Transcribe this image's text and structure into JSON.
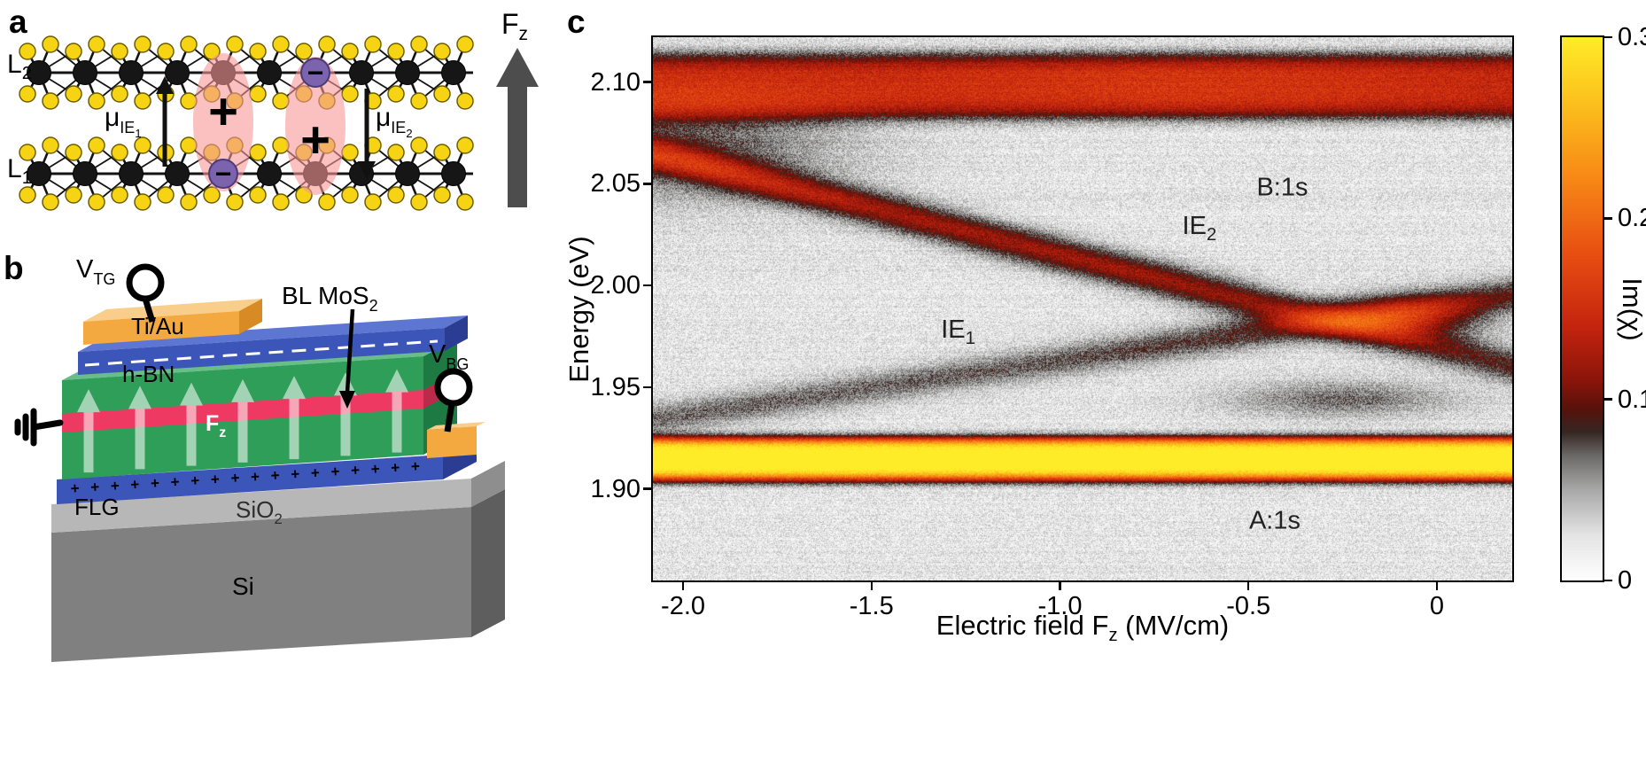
{
  "figure": {
    "panel_a": {
      "label": "a",
      "layer2": {
        "main": "L",
        "sub": "2"
      },
      "layer1": {
        "main": "L",
        "sub": "1"
      },
      "mu_ie1": {
        "main": "μ",
        "sub": "IE",
        "subsub": "1"
      },
      "mu_ie2": {
        "main": "μ",
        "sub": "IE",
        "subsub": "2"
      },
      "fz": {
        "main": "F",
        "sub": "z"
      },
      "plus": "+",
      "minus": "−",
      "colors": {
        "sulfur": "#f6d414",
        "molybdenum": "#161616",
        "bond": "#141414",
        "exciton": "rgba(246,152,150,0.60)",
        "electron": "#7c63ad",
        "field_arrow": "#4d4d4d"
      }
    },
    "panel_b": {
      "label": "b",
      "vtg": {
        "main": "V",
        "sub": "TG"
      },
      "vbg": {
        "main": "V",
        "sub": "BG"
      },
      "tiau": "Ti/Au",
      "hbn": "h-BN",
      "bl_mos2": {
        "main": "BL MoS",
        "sub": "2"
      },
      "fz": {
        "main": "F",
        "sub": "z"
      },
      "flg": "FLG",
      "sio2": {
        "main": "SiO",
        "sub": "2"
      },
      "si": "Si",
      "plus_row": "+ + + + + + + + + + + + + + + + + +",
      "colors": {
        "si_front": "#808080",
        "si_side": "#5e5e5e",
        "sio2_front": "#b7b7b7",
        "sio2_side": "#8e8e8e",
        "flg_blue": "#3c55b8",
        "flg_blue_side": "#2a3d92",
        "blue_top": "#5d76d2",
        "hbn_green": "#2f9e59",
        "hbn_green_side": "#1e7a43",
        "hbn_green_top": "#69bd89",
        "mos2_pink": "#ee3a63",
        "mos2_pink_side": "#bb2a4b",
        "tiau_orange": "#f3a93f",
        "tiau_light": "#f9cd8a",
        "tiau_side": "#d88a25",
        "bl_label_red": "#ee2d56"
      }
    },
    "panel_c": {
      "label": "c"
    }
  },
  "chart_data": {
    "type": "heatmap",
    "title": "",
    "xlabel": "Electric field Fz (MV/cm)",
    "xlabel_parts": {
      "pre": "Electric field F",
      "sub": "z",
      "post": " (MV/cm)"
    },
    "ylabel": "Energy (eV)",
    "colorbar_label": "Im(χ)",
    "xlim": [
      -2.08,
      0.2
    ],
    "ylim": [
      1.855,
      2.122
    ],
    "clim": [
      0,
      0.3
    ],
    "grid": false,
    "xticks": [
      {
        "v": -2.0,
        "label": "-2.0"
      },
      {
        "v": -1.5,
        "label": "-1.5"
      },
      {
        "v": -1.0,
        "label": "-1.0"
      },
      {
        "v": -0.5,
        "label": "-0.5"
      },
      {
        "v": 0.0,
        "label": "0"
      }
    ],
    "yticks": [
      {
        "v": 2.1,
        "label": "2.10"
      },
      {
        "v": 2.05,
        "label": "2.05"
      },
      {
        "v": 2.0,
        "label": "2.00"
      },
      {
        "v": 1.95,
        "label": "1.95"
      },
      {
        "v": 1.9,
        "label": "1.90"
      }
    ],
    "colorbar_ticks": [
      {
        "v": 0.3,
        "label": "0.3"
      },
      {
        "v": 0.2,
        "label": "0.2"
      },
      {
        "v": 0.1,
        "label": "0.1"
      },
      {
        "v": 0.0,
        "label": "0"
      }
    ],
    "annotations": [
      {
        "text": "B:1s",
        "sub": "",
        "x": -0.41,
        "y": 2.048
      },
      {
        "text": "IE",
        "sub": "2",
        "x": -0.63,
        "y": 2.028
      },
      {
        "text": "IE",
        "sub": "1",
        "x": -1.27,
        "y": 1.977
      },
      {
        "text": "A:1s",
        "sub": "",
        "x": -0.43,
        "y": 1.884
      }
    ],
    "colormap_stops": [
      [
        0.0,
        255,
        255,
        255
      ],
      [
        0.025,
        228,
        228,
        228
      ],
      [
        0.05,
        168,
        168,
        168
      ],
      [
        0.068,
        110,
        108,
        106
      ],
      [
        0.082,
        54,
        38,
        34
      ],
      [
        0.095,
        88,
        18,
        10
      ],
      [
        0.11,
        138,
        20,
        10
      ],
      [
        0.14,
        196,
        36,
        14
      ],
      [
        0.18,
        232,
        78,
        18
      ],
      [
        0.225,
        248,
        140,
        22
      ],
      [
        0.27,
        252,
        200,
        30
      ],
      [
        0.3,
        255,
        236,
        40
      ]
    ],
    "features": {
      "A_1s": {
        "energy": 1.9145,
        "amplitude": 0.3,
        "width": 0.0105
      },
      "B_1s": {
        "energy": 2.098,
        "amplitude": 0.115,
        "width": 0.016
      },
      "IE2": {
        "e0": 1.9825,
        "f0": -0.28,
        "slope_eV_per_MVcm": -0.0455,
        "amplitude": 0.098,
        "width": 0.0085
      },
      "IE1": {
        "e0": 1.9825,
        "f0": -0.28,
        "slope_eV_per_MVcm": 0.027,
        "amplitude": 0.066,
        "width": 0.008
      },
      "crossing_hotspot": {
        "f": -0.08,
        "energy": 1.984,
        "amplitude": 0.085
      },
      "background": 0.022,
      "noise": 0.04
    }
  }
}
